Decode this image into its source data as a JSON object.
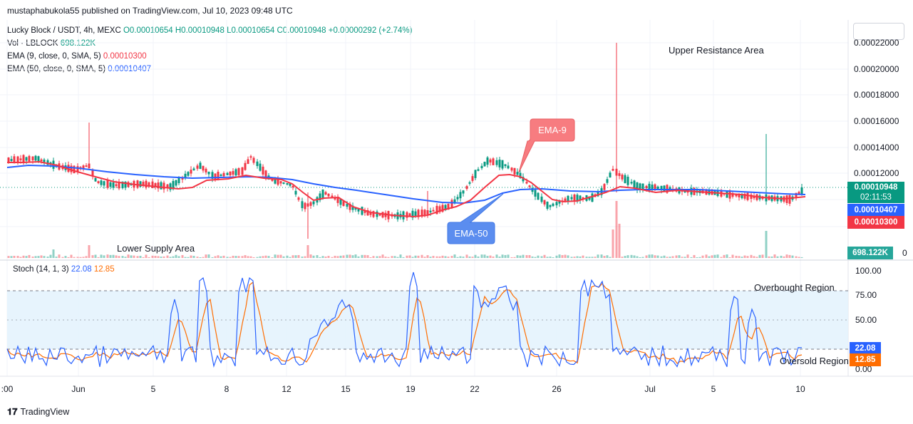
{
  "header": {
    "publish_line": "mustaphabukola55 published on TradingView.com, Jul 10, 2023 09:48 UTC"
  },
  "legend": {
    "symbol": "Lucky Block / USDT, 4h, MEXC",
    "ohlc": "O0.00010654 H0.00010948 L0.00010654 C0.00010948 +0.00000292 (+2.74%)",
    "vol_label": "Vol · LBLOCK",
    "vol_value": "698.122K",
    "ema9_label": "EMA (9, close, 0, SMA, 5)",
    "ema9_value": "0.00010300",
    "ema50_label": "EMA (50, close, 0, SMA, 5)",
    "ema50_value": "0.00010407"
  },
  "stoch_legend": {
    "label": "Stoch (14, 1, 3)",
    "k_value": "22.08",
    "d_value": "12.85"
  },
  "price_axis": {
    "ticks": [
      "0.00022000",
      "0.00020000",
      "0.00018000",
      "0.00016000",
      "0.00014000",
      "0.00012000"
    ]
  },
  "stoch_axis": {
    "ticks": [
      "100.00",
      "75.00",
      "50.00",
      "0.00"
    ]
  },
  "time_axis": {
    "labels": [
      ":00",
      "Jun",
      "5",
      "8",
      "12",
      "15",
      "19",
      "22",
      "26",
      "Jul",
      "5",
      "10"
    ]
  },
  "tags": {
    "last_price": "0.00010948",
    "countdown": "02:11:53",
    "ema50": "0.00010407",
    "ema9": "0.00010300",
    "volume": "698.122K",
    "stoch_k": "22.08",
    "stoch_d": "12.85",
    "partial_zero": "0"
  },
  "annotations": {
    "upper_resistance": "Upper Resistance Area",
    "lower_supply": "Lower Supply Area",
    "ema9_callout": "EMA-9",
    "ema50_callout": "EMA-50",
    "overbought": "Overbought Region",
    "oversold": "Oversold Region"
  },
  "footer": {
    "brand": "TradingView"
  },
  "colors": {
    "up": "#089981",
    "down": "#f23645",
    "ema9": "#f23645",
    "ema50": "#2962ff",
    "stoch_k": "#2962ff",
    "stoch_d": "#ff6d00",
    "stoch_band": "#e3f2fd"
  },
  "chart_data": {
    "type": "line",
    "title": "",
    "price_axis_range": [
      9.25e-05,
      0.000224
    ],
    "stoch_axis_range": [
      0,
      100
    ],
    "series": [
      {
        "name": "EMA (9, close, 0, SMA, 5)",
        "x": [
          ":00",
          "Jun",
          "5",
          "8",
          "12",
          "15",
          "19",
          "22",
          "26",
          "Jul",
          "5",
          "10"
        ],
        "values": [
          0.000128,
          0.000126,
          0.000118,
          0.000119,
          0.000114,
          0.000105,
          0.000102,
          0.000113,
          0.000104,
          0.000108,
          0.000107,
          0.000103
        ]
      },
      {
        "name": "EMA (50, close, 0, SMA, 5)",
        "x": [
          ":00",
          "Jun",
          "5",
          "8",
          "12",
          "15",
          "19",
          "22",
          "26",
          "Jul",
          "5",
          "10"
        ],
        "values": [
          0.000125,
          0.000124,
          0.000119,
          0.000118,
          0.000116,
          0.000111,
          0.000105,
          0.000102,
          0.000107,
          0.000108,
          0.000107,
          0.000104
        ]
      }
    ],
    "stoch_k_last": 22.08,
    "stoch_d_last": 12.85,
    "stoch_levels": [
      80,
      20
    ]
  }
}
